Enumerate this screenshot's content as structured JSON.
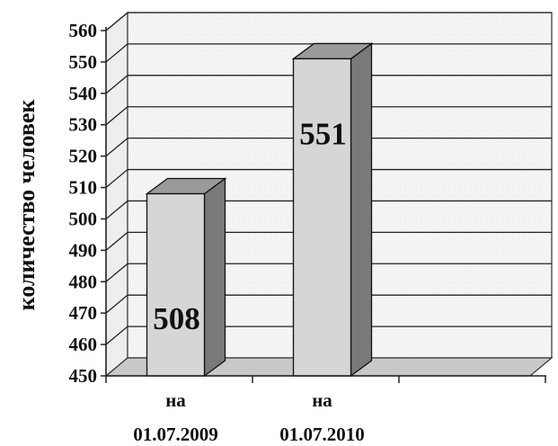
{
  "chart_data": {
    "type": "bar",
    "title": "",
    "xlabel": "",
    "ylabel": "количество человек",
    "ylim": [
      450,
      560
    ],
    "yticks": [
      450,
      460,
      470,
      480,
      490,
      500,
      510,
      520,
      530,
      540,
      550,
      560
    ],
    "categories": [
      [
        "на",
        "01.07.2009"
      ],
      [
        "на",
        "01.07.2010"
      ]
    ],
    "values": [
      508,
      551
    ],
    "data_labels": [
      "508",
      "551"
    ],
    "grid": true,
    "legend": "none",
    "style": "3d-column"
  }
}
